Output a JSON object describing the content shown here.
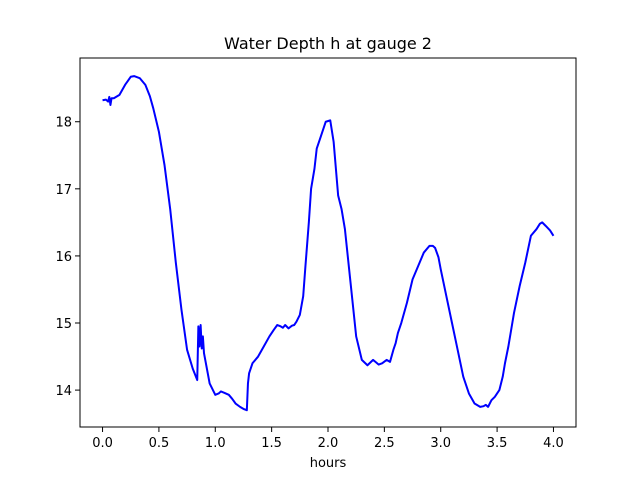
{
  "chart_data": {
    "type": "line",
    "title": "Water Depth h at gauge 2",
    "xlabel": "hours",
    "ylabel": "",
    "xlim": [
      -0.2,
      4.2
    ],
    "ylim": [
      13.45,
      18.95
    ],
    "xticks": [
      0.0,
      0.5,
      1.0,
      1.5,
      2.0,
      2.5,
      3.0,
      3.5,
      4.0
    ],
    "xtick_labels": [
      "0.0",
      "0.5",
      "1.0",
      "1.5",
      "2.0",
      "2.5",
      "3.0",
      "3.5",
      "4.0"
    ],
    "yticks": [
      14,
      15,
      16,
      17,
      18
    ],
    "ytick_labels": [
      "14",
      "15",
      "16",
      "17",
      "18"
    ],
    "grid": false,
    "legend": "none",
    "series": [
      {
        "color": "#0000ff",
        "x": [
          0.0,
          0.03,
          0.05,
          0.06,
          0.07,
          0.08,
          0.1,
          0.15,
          0.2,
          0.25,
          0.28,
          0.33,
          0.38,
          0.42,
          0.45,
          0.5,
          0.55,
          0.6,
          0.65,
          0.7,
          0.75,
          0.8,
          0.84,
          0.85,
          0.86,
          0.87,
          0.88,
          0.89,
          0.9,
          0.95,
          1.0,
          1.03,
          1.05,
          1.08,
          1.12,
          1.15,
          1.18,
          1.22,
          1.25,
          1.28,
          1.29,
          1.3,
          1.33,
          1.38,
          1.43,
          1.48,
          1.52,
          1.55,
          1.58,
          1.6,
          1.62,
          1.65,
          1.68,
          1.7,
          1.72,
          1.75,
          1.78,
          1.8,
          1.83,
          1.85,
          1.88,
          1.9,
          1.93,
          1.95,
          1.98,
          2.02,
          2.05,
          2.07,
          2.09,
          2.12,
          2.15,
          2.2,
          2.25,
          2.3,
          2.35,
          2.4,
          2.45,
          2.48,
          2.52,
          2.55,
          2.58,
          2.6,
          2.62,
          2.65,
          2.7,
          2.75,
          2.8,
          2.85,
          2.9,
          2.93,
          2.95,
          2.98,
          3.0,
          3.05,
          3.1,
          3.15,
          3.2,
          3.25,
          3.3,
          3.35,
          3.38,
          3.4,
          3.42,
          3.45,
          3.48,
          3.5,
          3.52,
          3.55,
          3.57,
          3.6,
          3.63,
          3.65,
          3.7,
          3.75,
          3.8,
          3.85,
          3.88,
          3.9,
          3.93,
          3.97,
          4.0
        ],
        "y": [
          18.32,
          18.33,
          18.3,
          18.37,
          18.25,
          18.35,
          18.35,
          18.4,
          18.55,
          18.67,
          18.68,
          18.65,
          18.55,
          18.38,
          18.2,
          17.85,
          17.35,
          16.7,
          15.9,
          15.2,
          14.6,
          14.32,
          14.15,
          14.95,
          14.65,
          14.97,
          14.62,
          14.8,
          14.55,
          14.1,
          13.93,
          13.95,
          13.98,
          13.96,
          13.93,
          13.87,
          13.8,
          13.75,
          13.72,
          13.7,
          14.1,
          14.25,
          14.4,
          14.5,
          14.65,
          14.8,
          14.9,
          14.97,
          14.95,
          14.93,
          14.97,
          14.92,
          14.96,
          14.97,
          15.02,
          15.12,
          15.4,
          15.85,
          16.5,
          17.0,
          17.3,
          17.6,
          17.75,
          17.85,
          18.0,
          18.02,
          17.7,
          17.3,
          16.9,
          16.7,
          16.4,
          15.6,
          14.8,
          14.45,
          14.37,
          14.45,
          14.38,
          14.4,
          14.45,
          14.42,
          14.6,
          14.7,
          14.85,
          15.0,
          15.3,
          15.65,
          15.85,
          16.05,
          16.15,
          16.15,
          16.12,
          15.98,
          15.8,
          15.4,
          15.0,
          14.6,
          14.2,
          13.95,
          13.8,
          13.75,
          13.76,
          13.78,
          13.75,
          13.85,
          13.9,
          13.95,
          14.0,
          14.2,
          14.4,
          14.65,
          14.95,
          15.15,
          15.55,
          15.9,
          16.3,
          16.4,
          16.48,
          16.5,
          16.45,
          16.38,
          16.3
        ]
      }
    ]
  }
}
